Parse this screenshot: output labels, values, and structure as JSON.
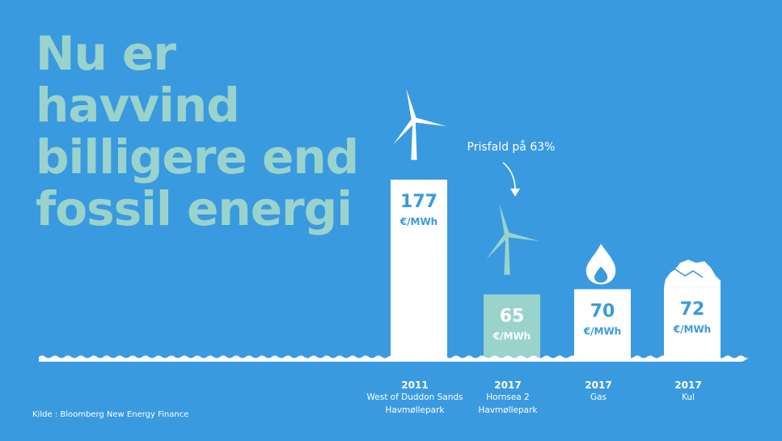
{
  "headline": [
    "Nu er",
    "havvind",
    "billigere end",
    "fossil energi"
  ],
  "source": "Kilde : Bloomberg New Energy Finance",
  "annotation": "Prisfald på 63%",
  "colors": {
    "background": "#3a9ae0",
    "headline": "#9ad3cc",
    "bar": "#ffffff",
    "highlight_bar": "#9ad3cc",
    "value_text_on_white": "#3a9ae0",
    "value_text_on_teal": "#ffffff"
  },
  "chart_data": {
    "type": "bar",
    "unit": "€/MWh",
    "categories": [
      {
        "year": "2011",
        "lines": [
          "West of Duddon Sands",
          "Havmøllepark"
        ],
        "icon": "wind-turbine-icon"
      },
      {
        "year": "2017",
        "lines": [
          "Hornsea 2",
          "Havmøllepark"
        ],
        "icon": "wind-turbine-icon"
      },
      {
        "year": "2017",
        "lines": [
          "Gas"
        ],
        "icon": "flame-icon"
      },
      {
        "year": "2017",
        "lines": [
          "Kul"
        ],
        "icon": "coal-pile-icon"
      }
    ],
    "values": [
      177,
      65,
      70,
      72
    ],
    "highlight_index": 1,
    "ylim": [
      0,
      177
    ]
  }
}
